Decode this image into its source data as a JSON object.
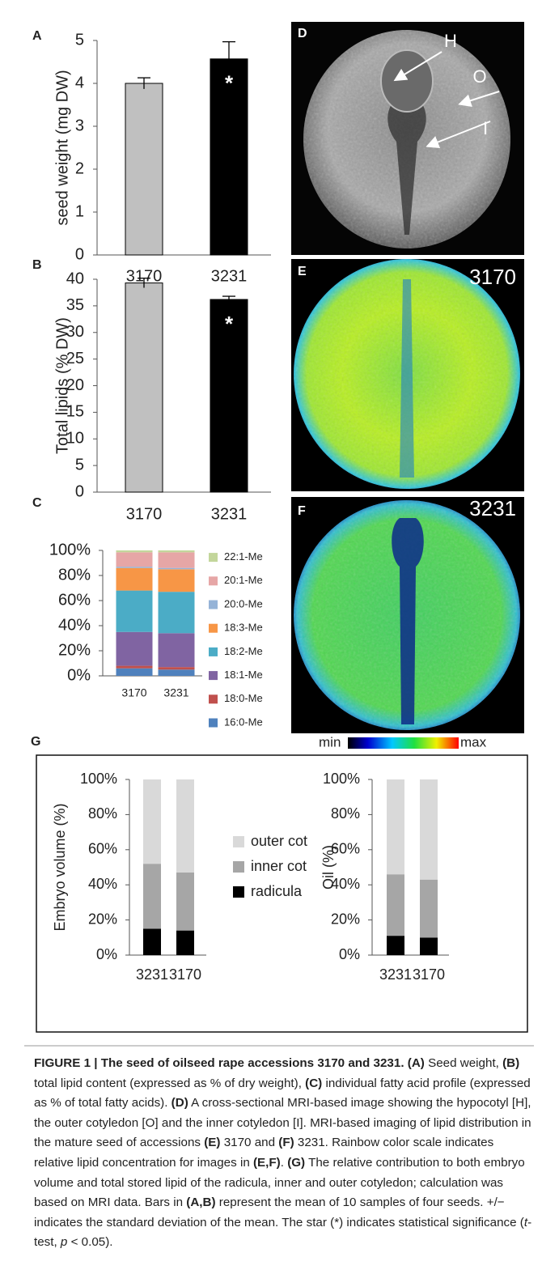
{
  "chart_data": [
    {
      "type": "bar",
      "panel_label": "A",
      "y_label": "seed weight (mg DW)",
      "categories": [
        "3170",
        "3231"
      ],
      "values": [
        4.0,
        4.57
      ],
      "errors": [
        0.13,
        0.4
      ],
      "colors": [
        "#c0c0c0",
        "#000000"
      ],
      "annotations": [
        null,
        "*"
      ],
      "ylim": [
        0,
        5
      ],
      "yticks": [
        0,
        1,
        2,
        3,
        4,
        5
      ]
    },
    {
      "type": "bar",
      "panel_label": "B",
      "y_label": "Total lipids (% DW)",
      "categories": [
        "3170",
        "3231"
      ],
      "values": [
        39.3,
        36.2
      ],
      "errors": [
        0.9,
        0.6
      ],
      "colors": [
        "#c0c0c0",
        "#000000"
      ],
      "annotations": [
        null,
        "*"
      ],
      "ylim": [
        0,
        40
      ],
      "yticks": [
        0,
        5,
        10,
        15,
        20,
        25,
        30,
        35,
        40
      ]
    },
    {
      "type": "stacked_bar",
      "panel_label": "C",
      "categories": [
        "3170",
        "3231"
      ],
      "series": [
        {
          "name": "16:0-Me",
          "color": "#4f81bd",
          "values": [
            6,
            5
          ]
        },
        {
          "name": "18:0-Me",
          "color": "#c0504d",
          "values": [
            2,
            2
          ]
        },
        {
          "name": "18:1-Me",
          "color": "#8064a2",
          "values": [
            27,
            27
          ]
        },
        {
          "name": "18:2-Me",
          "color": "#4bacc6",
          "values": [
            33,
            33
          ]
        },
        {
          "name": "18:3-Me",
          "color": "#f79646",
          "values": [
            18,
            18
          ]
        },
        {
          "name": "20:0-Me",
          "color": "#95b3d7",
          "values": [
            1,
            1
          ]
        },
        {
          "name": "20:1-Me",
          "color": "#e6a6a6",
          "values": [
            11.5,
            12.5
          ]
        },
        {
          "name": "22:1-Me",
          "color": "#c3d69b",
          "values": [
            1.5,
            1.5
          ]
        }
      ],
      "ylim": [
        0,
        100
      ],
      "yticks": [
        {
          "value": 0,
          "label": "0%"
        },
        {
          "value": 20,
          "label": "20%"
        },
        {
          "value": 40,
          "label": "40%"
        },
        {
          "value": 60,
          "label": "60%"
        },
        {
          "value": 80,
          "label": "80%"
        },
        {
          "value": 100,
          "label": "100%"
        }
      ]
    },
    {
      "type": "stacked_bar",
      "panel_label": "G",
      "y_label": "Embryo volume (%)",
      "categories": [
        "3231",
        "3170"
      ],
      "series": [
        {
          "name": "radicula",
          "color": "#000000",
          "values": [
            15,
            14
          ]
        },
        {
          "name": "inner cot",
          "color": "#a6a6a6",
          "values": [
            37,
            33
          ]
        },
        {
          "name": "outer cot",
          "color": "#d9d9d9",
          "values": [
            48,
            53
          ]
        }
      ],
      "ylim": [
        0,
        100
      ],
      "yticks": [
        {
          "value": 0,
          "label": "0%"
        },
        {
          "value": 20,
          "label": "20%"
        },
        {
          "value": 40,
          "label": "40%"
        },
        {
          "value": 60,
          "label": "60%"
        },
        {
          "value": 80,
          "label": "80%"
        },
        {
          "value": 100,
          "label": "100%"
        }
      ]
    },
    {
      "type": "stacked_bar",
      "y_label": "Oil (%)",
      "categories": [
        "3231",
        "3170"
      ],
      "series": [
        {
          "color": "#000000",
          "values": [
            11,
            10
          ]
        },
        {
          "color": "#a6a6a6",
          "values": [
            35,
            33
          ]
        },
        {
          "color": "#d9d9d9",
          "values": [
            54,
            57
          ]
        }
      ],
      "ylim": [
        0,
        100
      ],
      "yticks": [
        {
          "value": 0,
          "label": "0%"
        },
        {
          "value": 20,
          "label": "20%"
        },
        {
          "value": 40,
          "label": "40%"
        },
        {
          "value": 60,
          "label": "60%"
        },
        {
          "value": 80,
          "label": "80%"
        },
        {
          "value": 100,
          "label": "100%"
        }
      ]
    }
  ],
  "images": [
    {
      "panel_label": "D",
      "labels": [
        "H",
        "O",
        "I"
      ]
    },
    {
      "panel_label": "E",
      "label": "3170"
    },
    {
      "panel_label": "F",
      "label": "3231"
    }
  ],
  "colorbar": {
    "min_label": "min",
    "max_label": "max"
  },
  "caption": {
    "runs": [
      {
        "text": "FIGURE 1 | The seed of oilseed rape accessions 3170 and 3231. (A)",
        "style": "bold"
      },
      {
        "text": " Seed weight, "
      },
      {
        "text": "(B)",
        "style": "bold"
      },
      {
        "text": " total lipid content (expressed as % of dry weight), "
      },
      {
        "text": "(C)",
        "style": "bold"
      },
      {
        "text": " individual fatty acid profile (expressed as % of total fatty acids). "
      },
      {
        "text": "(D)",
        "style": "bold"
      },
      {
        "text": " A cross-sectional MRI-based image showing the hypocotyl [H], the outer cotyledon [O] and the inner cotyledon [I]. MRI-based imaging of lipid distribution in the mature seed of accessions "
      },
      {
        "text": "(E)",
        "style": "bold"
      },
      {
        "text": " 3170 and "
      },
      {
        "text": "(F)",
        "style": "bold"
      },
      {
        "text": " 3231. Rainbow color scale indicates relative lipid concentration for images in "
      },
      {
        "text": "(E,F)",
        "style": "bold"
      },
      {
        "text": ". "
      },
      {
        "text": "(G)",
        "style": "bold"
      },
      {
        "text": " The relative contribution to both embryo volume and total stored lipid of the radicula, inner and outer cotyledon; calculation was based on MRI data. Bars in "
      },
      {
        "text": "(A,B)",
        "style": "bold"
      },
      {
        "text": " represent the mean of 10 samples of four seeds. +/− indicates the standard deviation of the mean. The star (*) indicates statistical significance ("
      },
      {
        "text": "t",
        "style": "italic"
      },
      {
        "text": "-test, "
      },
      {
        "text": "p",
        "style": "italic"
      },
      {
        "text": " < 0.05)."
      }
    ]
  }
}
